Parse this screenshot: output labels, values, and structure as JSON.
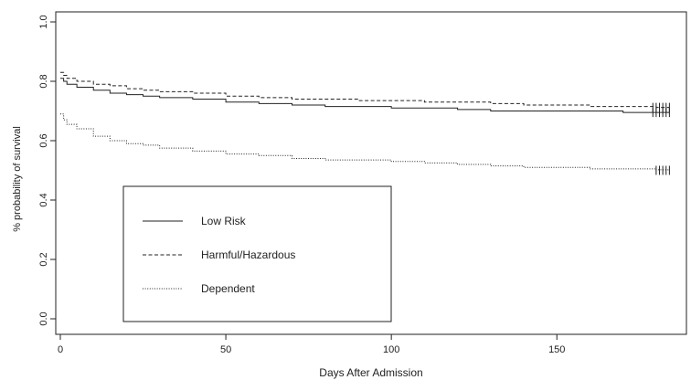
{
  "chart_data": {
    "type": "line",
    "title": "",
    "xlabel": "Days After Admission",
    "ylabel": "% probability of survival",
    "xlim": [
      0,
      185
    ],
    "ylim": [
      0,
      1
    ],
    "x_ticks": [
      0,
      50,
      100,
      150
    ],
    "y_ticks": [
      0.0,
      0.2,
      0.4,
      0.6,
      0.8,
      1.0
    ],
    "x_tick_labels": [
      "0",
      "50",
      "100",
      "150"
    ],
    "y_tick_labels": [
      "0.0",
      "0.2",
      "0.4",
      "0.6",
      "0.8",
      "1.0"
    ],
    "grid": false,
    "legend_position": "bottom-left",
    "line_color": "#222222",
    "series": [
      {
        "name": "Low Risk",
        "dash": "solid",
        "x": [
          0,
          1,
          2,
          5,
          10,
          15,
          20,
          25,
          30,
          40,
          50,
          60,
          70,
          80,
          90,
          100,
          110,
          120,
          130,
          140,
          150,
          160,
          170,
          180,
          184
        ],
        "y": [
          0.81,
          0.8,
          0.79,
          0.78,
          0.77,
          0.76,
          0.755,
          0.75,
          0.745,
          0.74,
          0.73,
          0.725,
          0.72,
          0.715,
          0.715,
          0.71,
          0.71,
          0.705,
          0.7,
          0.7,
          0.7,
          0.7,
          0.695,
          0.695,
          0.695
        ],
        "censor_x": [
          179,
          180,
          181,
          182,
          183,
          184
        ]
      },
      {
        "name": "Harmful/Hazardous",
        "dash": "dashed",
        "x": [
          0,
          1,
          2,
          5,
          10,
          15,
          20,
          25,
          30,
          40,
          50,
          60,
          70,
          80,
          90,
          100,
          110,
          120,
          130,
          140,
          150,
          160,
          170,
          180,
          184
        ],
        "y": [
          0.83,
          0.82,
          0.81,
          0.8,
          0.79,
          0.785,
          0.775,
          0.77,
          0.765,
          0.76,
          0.75,
          0.745,
          0.74,
          0.74,
          0.735,
          0.735,
          0.73,
          0.73,
          0.725,
          0.72,
          0.72,
          0.715,
          0.715,
          0.712,
          0.712
        ],
        "censor_x": [
          179,
          180,
          181,
          182,
          183,
          184
        ]
      },
      {
        "name": "Dependent",
        "dash": "dotted",
        "x": [
          0,
          1,
          2,
          5,
          10,
          15,
          20,
          25,
          30,
          40,
          50,
          60,
          70,
          80,
          90,
          100,
          110,
          120,
          130,
          140,
          150,
          160,
          170,
          180,
          184
        ],
        "y": [
          0.69,
          0.67,
          0.655,
          0.64,
          0.615,
          0.6,
          0.59,
          0.585,
          0.575,
          0.565,
          0.555,
          0.55,
          0.54,
          0.535,
          0.535,
          0.53,
          0.525,
          0.52,
          0.515,
          0.51,
          0.51,
          0.505,
          0.505,
          0.502,
          0.5
        ],
        "censor_x": [
          180,
          181,
          182,
          183,
          184
        ]
      }
    ]
  }
}
